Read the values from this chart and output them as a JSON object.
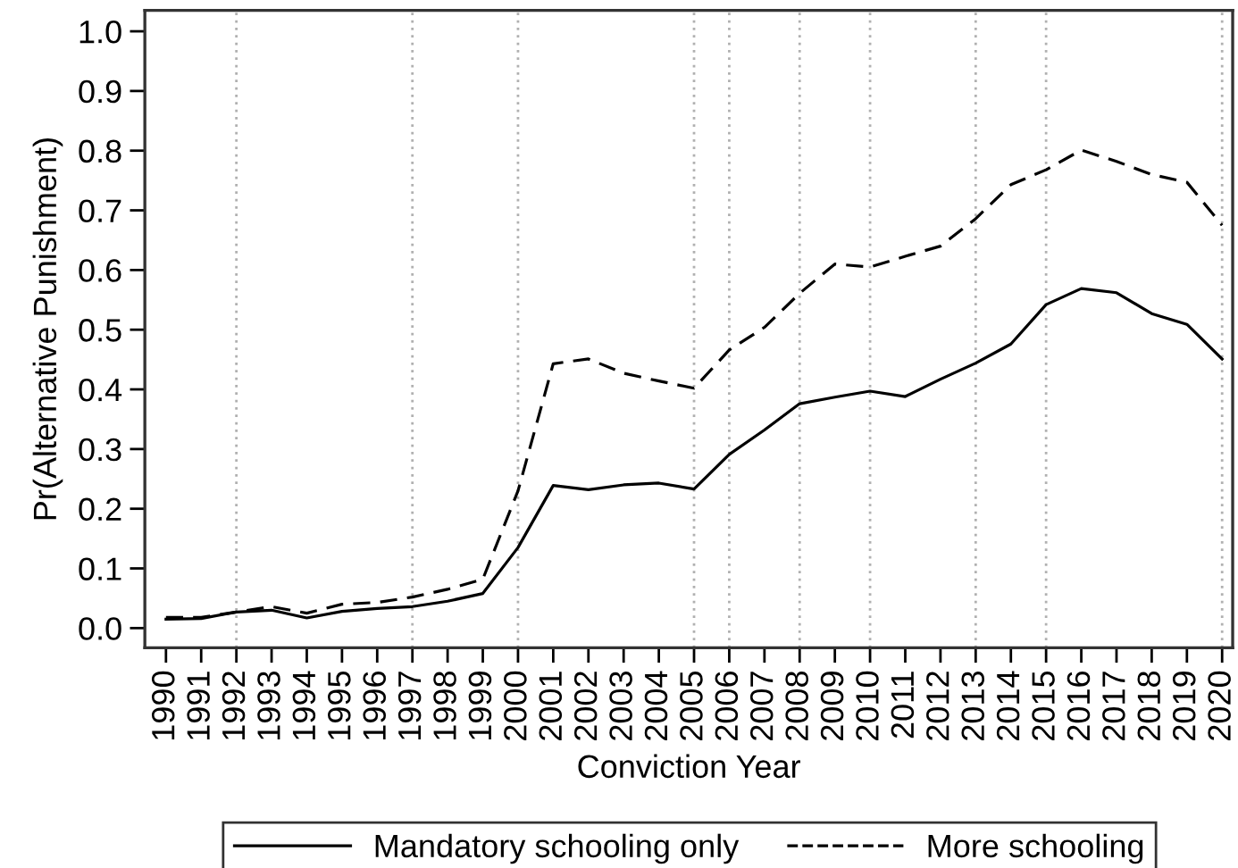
{
  "chart_data": {
    "type": "line",
    "xlabel": "Conviction Year",
    "ylabel": "Pr(Alternative Punishment)",
    "x": [
      1990,
      1991,
      1992,
      1993,
      1994,
      1995,
      1996,
      1997,
      1998,
      1999,
      2000,
      2001,
      2002,
      2003,
      2004,
      2005,
      2006,
      2007,
      2008,
      2009,
      2010,
      2011,
      2012,
      2013,
      2014,
      2015,
      2016,
      2017,
      2018,
      2019,
      2020
    ],
    "series": [
      {
        "name": "Mandatory schooling only",
        "color": "#000000",
        "line_style": "solid",
        "values": [
          0.015,
          0.016,
          0.027,
          0.03,
          0.017,
          0.028,
          0.033,
          0.036,
          0.045,
          0.058,
          0.135,
          0.239,
          0.232,
          0.24,
          0.243,
          0.233,
          0.291,
          0.332,
          0.376,
          0.387,
          0.397,
          0.388,
          0.417,
          0.444,
          0.476,
          0.542,
          0.569,
          0.562,
          0.527,
          0.509,
          0.451
        ]
      },
      {
        "name": "More schooling",
        "color": "#000000",
        "line_style": "dashed",
        "values": [
          0.018,
          0.018,
          0.027,
          0.036,
          0.025,
          0.04,
          0.043,
          0.052,
          0.065,
          0.082,
          0.23,
          0.443,
          0.451,
          0.427,
          0.414,
          0.402,
          0.466,
          0.504,
          0.561,
          0.61,
          0.605,
          0.623,
          0.64,
          0.686,
          0.743,
          0.768,
          0.801,
          0.782,
          0.76,
          0.747,
          0.675
        ]
      }
    ],
    "xlim": [
      1989.4,
      2020.3
    ],
    "xticks": [
      1990,
      1991,
      1992,
      1993,
      1994,
      1995,
      1996,
      1997,
      1998,
      1999,
      2000,
      2001,
      2002,
      2003,
      2004,
      2005,
      2006,
      2007,
      2008,
      2009,
      2010,
      2011,
      2012,
      2013,
      2014,
      2015,
      2016,
      2017,
      2018,
      2019,
      2020
    ],
    "ylim": [
      -0.033,
      1.035
    ],
    "yticks": [
      {
        "value": 0,
        "label": "0.0"
      },
      0.1,
      0.2,
      0.3,
      0.4,
      0.5,
      0.6,
      0.7,
      0.8,
      0.9,
      {
        "value": 1,
        "label": "1.0"
      }
    ],
    "ref_lines": [
      {
        "axis": "x",
        "value": 1992,
        "color": "#b0b0b0",
        "line_style": "dotted"
      },
      {
        "axis": "x",
        "value": 1997,
        "color": "#b0b0b0",
        "line_style": "dotted"
      },
      {
        "axis": "x",
        "value": 2000,
        "color": "#b0b0b0",
        "line_style": "dotted"
      },
      {
        "axis": "x",
        "value": 2005,
        "color": "#b0b0b0",
        "line_style": "dotted"
      },
      {
        "axis": "x",
        "value": 2006,
        "color": "#b0b0b0",
        "line_style": "dotted"
      },
      {
        "axis": "x",
        "value": 2008,
        "color": "#b0b0b0",
        "line_style": "dotted"
      },
      {
        "axis": "x",
        "value": 2010,
        "color": "#b0b0b0",
        "line_style": "dotted"
      },
      {
        "axis": "x",
        "value": 2013,
        "color": "#b0b0b0",
        "line_style": "dotted"
      },
      {
        "axis": "x",
        "value": 2015,
        "color": "#b0b0b0",
        "line_style": "dotted"
      },
      {
        "axis": "x",
        "value": 2020,
        "color": "#b0b0b0",
        "line_style": "dotted"
      }
    ],
    "legend": "bottom"
  }
}
